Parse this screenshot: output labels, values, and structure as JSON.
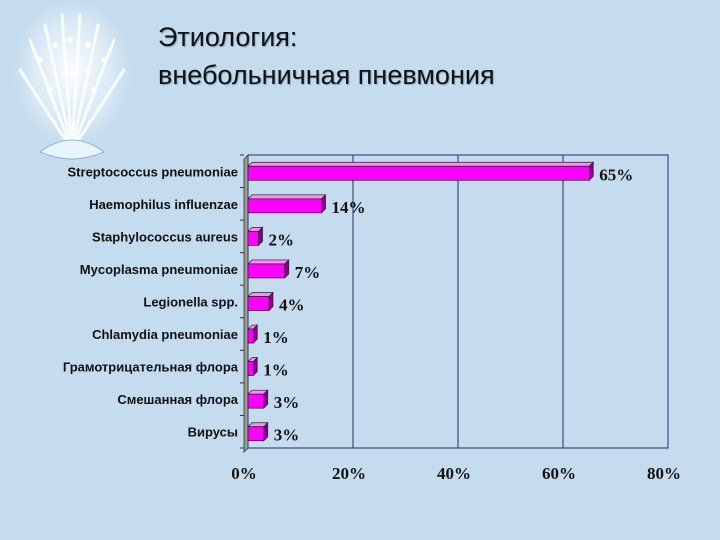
{
  "slide": {
    "title_line1": "Этиология:",
    "title_line2": "внебольничная пневмония"
  },
  "colors": {
    "bar_front": "#ff00ff",
    "bar_top": "#ff88ff",
    "bar_side": "#8a008a",
    "background": "#c4dcee"
  },
  "chart_data": {
    "type": "bar",
    "orientation": "horizontal",
    "style": "3d",
    "title": "",
    "xlabel": "",
    "ylabel": "",
    "xlim": [
      0,
      80
    ],
    "x_ticks": [
      "0%",
      "20%",
      "40%",
      "60%",
      "80%"
    ],
    "grid": "vertical",
    "legend": "none",
    "categories": [
      "Streptococcus pneumoniae",
      "Haemophilus influenzae",
      "Staphylococcus aureus",
      "Mycoplasma pneumoniae",
      "Legionella spp.",
      "Chlamydia pneumoniae",
      "Грамотрицательная флора",
      "Смешанная флора",
      "Вирусы"
    ],
    "values": [
      65,
      14,
      2,
      7,
      4,
      1,
      1,
      3,
      3
    ],
    "data_labels": [
      "65%",
      "14%",
      "2%",
      "7%",
      "4%",
      "1%",
      "1%",
      "3%",
      "3%"
    ]
  }
}
